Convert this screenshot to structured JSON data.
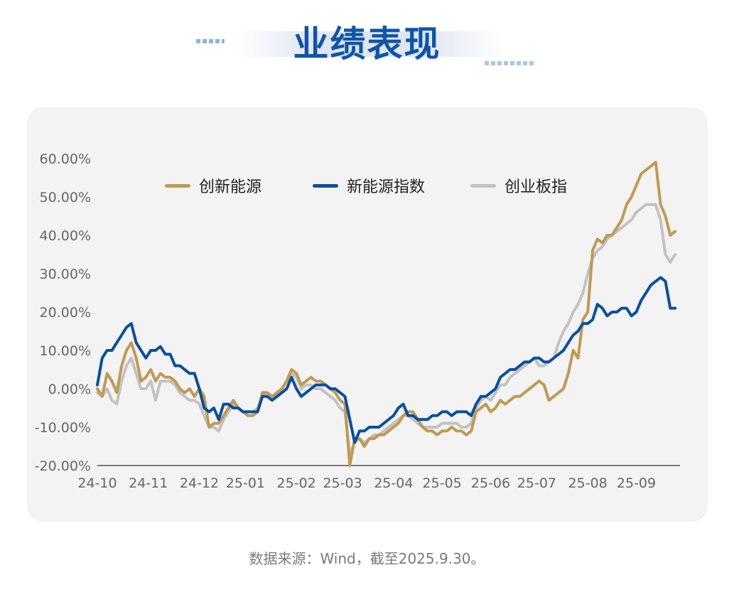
{
  "page": {
    "title": "业绩表现",
    "source": "数据来源：Wind，截至2025.9.30。"
  },
  "colors": {
    "title": "#0f55a6",
    "gold": "#bf9a55",
    "blue": "#0a4f9c",
    "gray": "#c2c2c2"
  },
  "chart_data": {
    "type": "line",
    "title": "",
    "xlabel": "",
    "ylabel": "",
    "ylim": [
      -0.2,
      0.6
    ],
    "y_tick_values": [
      -0.2,
      -0.1,
      0.0,
      0.1,
      0.2,
      0.3,
      0.4,
      0.5,
      0.6
    ],
    "y_tick_labels": [
      "-20.00%",
      "-10.00%",
      "0.00%",
      "10.00%",
      "20.00%",
      "30.00%",
      "40.00%",
      "50.00%",
      "60.00%"
    ],
    "x_tick_labels": [
      "24-10",
      "24-11",
      "24-12",
      "25-01",
      "25-02",
      "25-03",
      "25-04",
      "25-05",
      "25-06",
      "25-07",
      "25-08",
      "25-09"
    ],
    "x_tick_positions": [
      0,
      1.05,
      2.1,
      3.05,
      4.1,
      5.05,
      6.1,
      7.1,
      8.1,
      9.05,
      10.1,
      11.1
    ],
    "xlim": [
      0,
      12
    ],
    "grid": false,
    "legend_position": "top",
    "series": [
      {
        "name": "创新能源",
        "color": "gold",
        "x": [
          0,
          0.1,
          0.2,
          0.3,
          0.4,
          0.5,
          0.6,
          0.7,
          0.8,
          0.9,
          1.0,
          1.1,
          1.2,
          1.3,
          1.4,
          1.5,
          1.6,
          1.7,
          1.8,
          1.9,
          2.0,
          2.1,
          2.2,
          2.3,
          2.4,
          2.5,
          2.6,
          2.7,
          2.8,
          2.9,
          3.0,
          3.1,
          3.2,
          3.3,
          3.4,
          3.5,
          3.6,
          3.7,
          3.8,
          3.9,
          4.0,
          4.1,
          4.2,
          4.3,
          4.4,
          4.5,
          4.6,
          4.7,
          4.8,
          4.9,
          5.0,
          5.1,
          5.2,
          5.3,
          5.4,
          5.5,
          5.6,
          5.7,
          5.8,
          5.9,
          6.0,
          6.1,
          6.2,
          6.3,
          6.4,
          6.5,
          6.6,
          6.7,
          6.8,
          6.9,
          7.0,
          7.1,
          7.2,
          7.3,
          7.4,
          7.5,
          7.6,
          7.7,
          7.8,
          7.9,
          8.0,
          8.1,
          8.2,
          8.3,
          8.4,
          8.5,
          8.6,
          8.7,
          8.8,
          8.9,
          9.0,
          9.1,
          9.2,
          9.3,
          9.4,
          9.5,
          9.6,
          9.7,
          9.8,
          9.9,
          10.0,
          10.1,
          10.2,
          10.3,
          10.4,
          10.5,
          10.6,
          10.7,
          10.8,
          10.9,
          11.0,
          11.1,
          11.2,
          11.3,
          11.4,
          11.5,
          11.6,
          11.7,
          11.8,
          11.9
        ],
        "values": [
          0.0,
          -0.02,
          0.04,
          0.02,
          -0.01,
          0.06,
          0.1,
          0.12,
          0.08,
          0.02,
          0.03,
          0.05,
          0.02,
          0.04,
          0.03,
          0.03,
          0.02,
          0.0,
          -0.01,
          0.0,
          -0.02,
          0.0,
          -0.02,
          -0.1,
          -0.09,
          -0.09,
          -0.07,
          -0.05,
          -0.03,
          -0.05,
          -0.06,
          -0.07,
          -0.07,
          -0.06,
          -0.01,
          -0.01,
          -0.02,
          -0.01,
          0.0,
          0.02,
          0.05,
          0.04,
          0.01,
          0.02,
          0.03,
          0.02,
          0.02,
          0.01,
          0.0,
          -0.01,
          -0.03,
          -0.04,
          -0.2,
          -0.13,
          -0.13,
          -0.15,
          -0.13,
          -0.13,
          -0.12,
          -0.12,
          -0.11,
          -0.1,
          -0.09,
          -0.07,
          -0.06,
          -0.06,
          -0.08,
          -0.1,
          -0.11,
          -0.11,
          -0.12,
          -0.11,
          -0.11,
          -0.1,
          -0.11,
          -0.11,
          -0.12,
          -0.11,
          -0.06,
          -0.05,
          -0.04,
          -0.06,
          -0.05,
          -0.03,
          -0.04,
          -0.03,
          -0.02,
          -0.02,
          -0.01,
          0.0,
          0.01,
          0.02,
          0.01,
          -0.03,
          -0.02,
          -0.01,
          0.0,
          0.04,
          0.1,
          0.08,
          0.18,
          0.2,
          0.36,
          0.39,
          0.38,
          0.4,
          0.4,
          0.42,
          0.44,
          0.48,
          0.5,
          0.53,
          0.56,
          0.57,
          0.58,
          0.59,
          0.48,
          0.45,
          0.4,
          0.41
        ]
      },
      {
        "name": "新能源指数",
        "color": "blue",
        "x": [
          0,
          0.1,
          0.2,
          0.3,
          0.4,
          0.5,
          0.6,
          0.7,
          0.8,
          0.9,
          1.0,
          1.1,
          1.2,
          1.3,
          1.4,
          1.5,
          1.6,
          1.7,
          1.8,
          1.9,
          2.0,
          2.1,
          2.2,
          2.3,
          2.4,
          2.5,
          2.6,
          2.7,
          2.8,
          2.9,
          3.0,
          3.1,
          3.2,
          3.3,
          3.4,
          3.5,
          3.6,
          3.7,
          3.8,
          3.9,
          4.0,
          4.1,
          4.2,
          4.3,
          4.4,
          4.5,
          4.6,
          4.7,
          4.8,
          4.9,
          5.0,
          5.1,
          5.2,
          5.3,
          5.4,
          5.5,
          5.6,
          5.7,
          5.8,
          5.9,
          6.0,
          6.1,
          6.2,
          6.3,
          6.4,
          6.5,
          6.6,
          6.7,
          6.8,
          6.9,
          7.0,
          7.1,
          7.2,
          7.3,
          7.4,
          7.5,
          7.6,
          7.7,
          7.8,
          7.9,
          8.0,
          8.1,
          8.2,
          8.3,
          8.4,
          8.5,
          8.6,
          8.7,
          8.8,
          8.9,
          9.0,
          9.1,
          9.2,
          9.3,
          9.4,
          9.5,
          9.6,
          9.7,
          9.8,
          9.9,
          10.0,
          10.1,
          10.2,
          10.3,
          10.4,
          10.5,
          10.6,
          10.7,
          10.8,
          10.9,
          11.0,
          11.1,
          11.2,
          11.3,
          11.4,
          11.5,
          11.6,
          11.7,
          11.8,
          11.9
        ],
        "values": [
          0.01,
          0.08,
          0.1,
          0.1,
          0.12,
          0.14,
          0.16,
          0.17,
          0.12,
          0.1,
          0.08,
          0.1,
          0.1,
          0.11,
          0.09,
          0.09,
          0.06,
          0.06,
          0.05,
          0.04,
          0.04,
          0.0,
          -0.05,
          -0.06,
          -0.05,
          -0.08,
          -0.04,
          -0.04,
          -0.05,
          -0.05,
          -0.06,
          -0.06,
          -0.06,
          -0.06,
          -0.02,
          -0.02,
          -0.03,
          -0.02,
          -0.01,
          0.0,
          0.03,
          0.0,
          -0.02,
          -0.01,
          0.0,
          0.01,
          0.01,
          0.01,
          0.0,
          0.0,
          -0.01,
          -0.02,
          -0.08,
          -0.14,
          -0.11,
          -0.11,
          -0.1,
          -0.1,
          -0.1,
          -0.09,
          -0.08,
          -0.07,
          -0.05,
          -0.04,
          -0.07,
          -0.07,
          -0.08,
          -0.08,
          -0.08,
          -0.07,
          -0.07,
          -0.06,
          -0.06,
          -0.07,
          -0.06,
          -0.06,
          -0.06,
          -0.07,
          -0.04,
          -0.02,
          -0.02,
          -0.01,
          0.0,
          0.03,
          0.04,
          0.05,
          0.05,
          0.06,
          0.07,
          0.07,
          0.08,
          0.08,
          0.07,
          0.07,
          0.08,
          0.09,
          0.1,
          0.12,
          0.14,
          0.15,
          0.17,
          0.17,
          0.18,
          0.22,
          0.21,
          0.19,
          0.2,
          0.2,
          0.21,
          0.21,
          0.19,
          0.2,
          0.23,
          0.25,
          0.27,
          0.28,
          0.29,
          0.28,
          0.21,
          0.21
        ]
      },
      {
        "name": "创业板指",
        "color": "gray",
        "x": [
          0,
          0.1,
          0.2,
          0.3,
          0.4,
          0.5,
          0.6,
          0.7,
          0.8,
          0.9,
          1.0,
          1.1,
          1.2,
          1.3,
          1.4,
          1.5,
          1.6,
          1.7,
          1.8,
          1.9,
          2.0,
          2.1,
          2.2,
          2.3,
          2.4,
          2.5,
          2.6,
          2.7,
          2.8,
          2.9,
          3.0,
          3.1,
          3.2,
          3.3,
          3.4,
          3.5,
          3.6,
          3.7,
          3.8,
          3.9,
          4.0,
          4.1,
          4.2,
          4.3,
          4.4,
          4.5,
          4.6,
          4.7,
          4.8,
          4.9,
          5.0,
          5.1,
          5.2,
          5.3,
          5.4,
          5.5,
          5.6,
          5.7,
          5.8,
          5.9,
          6.0,
          6.1,
          6.2,
          6.3,
          6.4,
          6.5,
          6.6,
          6.7,
          6.8,
          6.9,
          7.0,
          7.1,
          7.2,
          7.3,
          7.4,
          7.5,
          7.6,
          7.7,
          7.8,
          7.9,
          8.0,
          8.1,
          8.2,
          8.3,
          8.4,
          8.5,
          8.6,
          8.7,
          8.8,
          8.9,
          9.0,
          9.1,
          9.2,
          9.3,
          9.4,
          9.5,
          9.6,
          9.7,
          9.8,
          9.9,
          10.0,
          10.1,
          10.2,
          10.3,
          10.4,
          10.5,
          10.6,
          10.7,
          10.8,
          10.9,
          11.0,
          11.1,
          11.2,
          11.3,
          11.4,
          11.5,
          11.6,
          11.7,
          11.8,
          11.9
        ],
        "values": [
          -0.01,
          -0.02,
          0.0,
          -0.03,
          -0.04,
          0.02,
          0.06,
          0.08,
          0.04,
          0.0,
          0.0,
          0.02,
          -0.03,
          0.02,
          0.02,
          0.02,
          0.01,
          -0.01,
          -0.02,
          -0.03,
          -0.03,
          -0.04,
          -0.07,
          -0.1,
          -0.1,
          -0.11,
          -0.08,
          -0.06,
          -0.04,
          -0.05,
          -0.06,
          -0.06,
          -0.06,
          -0.05,
          -0.02,
          -0.01,
          -0.02,
          -0.01,
          0.0,
          0.02,
          0.04,
          0.03,
          0.0,
          0.01,
          0.01,
          0.0,
          0.0,
          -0.01,
          -0.02,
          -0.03,
          -0.05,
          -0.06,
          -0.17,
          -0.14,
          -0.13,
          -0.14,
          -0.13,
          -0.12,
          -0.12,
          -0.11,
          -0.1,
          -0.09,
          -0.08,
          -0.07,
          -0.07,
          -0.08,
          -0.09,
          -0.1,
          -0.1,
          -0.1,
          -0.1,
          -0.09,
          -0.09,
          -0.09,
          -0.09,
          -0.1,
          -0.1,
          -0.09,
          -0.05,
          -0.03,
          -0.02,
          -0.03,
          -0.01,
          0.01,
          0.01,
          0.03,
          0.04,
          0.05,
          0.06,
          0.07,
          0.08,
          0.06,
          0.06,
          0.07,
          0.08,
          0.12,
          0.15,
          0.17,
          0.2,
          0.22,
          0.25,
          0.3,
          0.34,
          0.36,
          0.37,
          0.39,
          0.4,
          0.41,
          0.42,
          0.43,
          0.44,
          0.46,
          0.47,
          0.48,
          0.48,
          0.48,
          0.44,
          0.35,
          0.33,
          0.35
        ]
      }
    ]
  }
}
